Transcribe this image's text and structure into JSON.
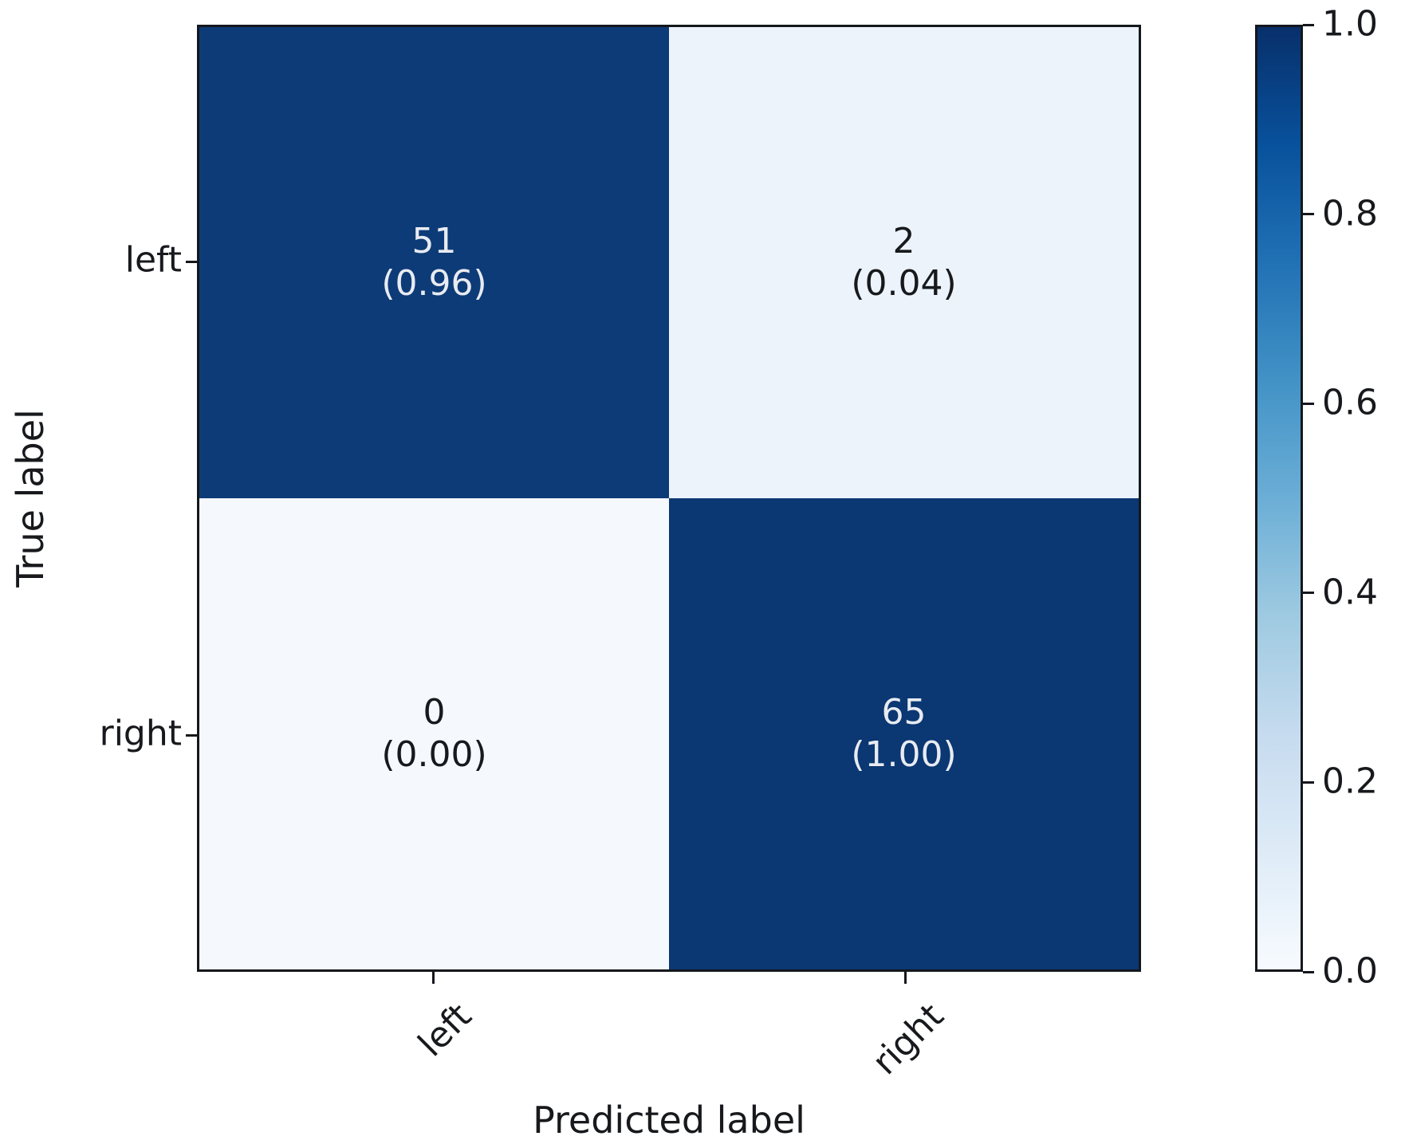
{
  "chart_data": {
    "type": "heatmap",
    "title": "",
    "xlabel": "Predicted label",
    "ylabel": "True label",
    "x_tick_labels": [
      "left",
      "right"
    ],
    "y_tick_labels": [
      "left",
      "right"
    ],
    "rows": [
      {
        "true_label": "left",
        "cells": [
          {
            "count": "51",
            "fraction": "(0.96)",
            "value": 0.96,
            "bg": "#0d3b77",
            "fg": "#e8ebf1"
          },
          {
            "count": "2",
            "fraction": "(0.04)",
            "value": 0.04,
            "bg": "#ecf3fb",
            "fg": "#17191c"
          }
        ]
      },
      {
        "true_label": "right",
        "cells": [
          {
            "count": "0",
            "fraction": "(0.00)",
            "value": 0.0,
            "bg": "#f5f9fe",
            "fg": "#17191c"
          },
          {
            "count": "65",
            "fraction": "(1.00)",
            "value": 1.0,
            "bg": "#0b3772",
            "fg": "#e8ebf1"
          }
        ]
      }
    ],
    "colorbar": {
      "tick_labels": [
        "1.0",
        "0.8",
        "0.6",
        "0.4",
        "0.2",
        "0.0"
      ],
      "min": 0.0,
      "max": 1.0,
      "colormap": "Blues",
      "gradient_stops_bottom_to_top": [
        "#f7fbff",
        "#deebf7",
        "#c6dbef",
        "#9ecae1",
        "#6baed6",
        "#4292c6",
        "#2171b5",
        "#08519c",
        "#08306b"
      ]
    },
    "axis_color": "#14171c"
  }
}
